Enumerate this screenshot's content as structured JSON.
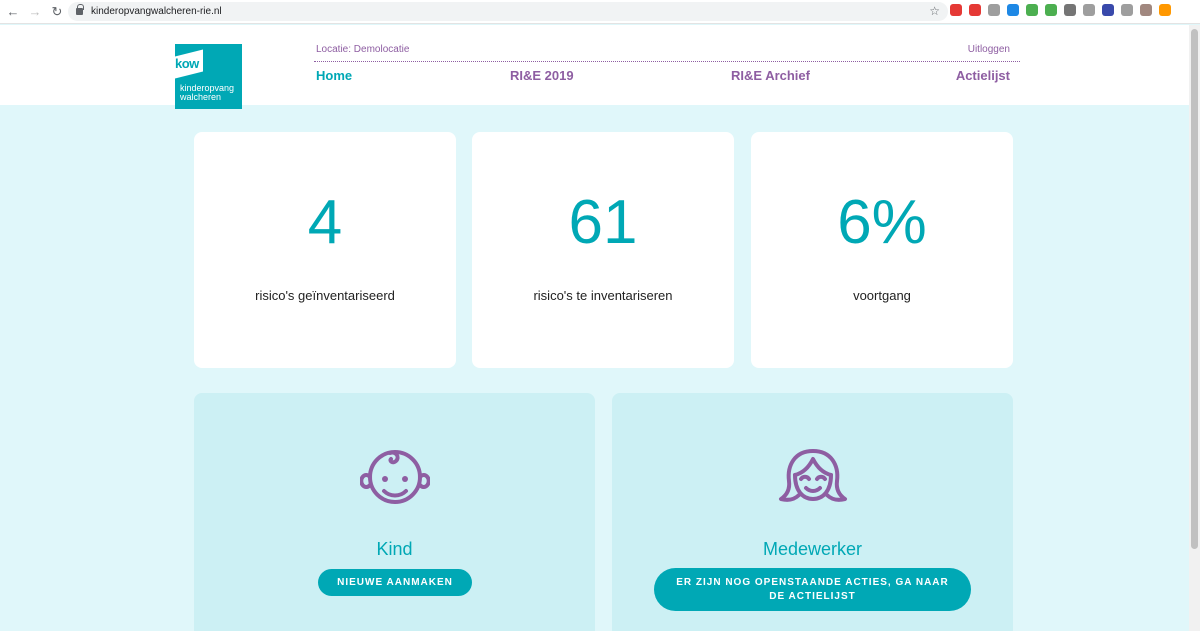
{
  "browser": {
    "url": "kinderopvangwalcheren-rie.nl",
    "extension_icons": [
      "#e53935",
      "#e53935",
      "#9e9e9e",
      "#1e88e5",
      "#4caf50",
      "#4caf50",
      "#757575",
      "#9e9e9e",
      "#3949ab",
      "#9e9e9e",
      "#a1887f",
      "#ff9800"
    ]
  },
  "header": {
    "logo": {
      "mark": "kow",
      "line1": "kinderopvang",
      "line2": "walcheren"
    },
    "location": "Locatie: Demolocatie",
    "logout": "Uitloggen",
    "menu": {
      "home": "Home",
      "rie": "RI&E 2019",
      "archief": "RI&E Archief",
      "actielijst": "Actielijst"
    }
  },
  "stats": {
    "inventoried": {
      "value": "4",
      "label": "risico's geïnventariseerd"
    },
    "to_inventory": {
      "value": "61",
      "label": "risico's te inventariseren"
    },
    "progress": {
      "value": "6%",
      "label": "voortgang"
    }
  },
  "panels": {
    "kind": {
      "title": "Kind",
      "button": "NIEUWE AANMAKEN",
      "icon": "baby-face-icon"
    },
    "medewerker": {
      "title": "Medewerker",
      "button_line1": "ER ZIJN NOG OPENSTAANDE ACTIES, GA NAAR",
      "button_line2": "DE ACTIELIJST",
      "icon": "woman-face-icon"
    }
  },
  "colors": {
    "teal": "#00a8b5",
    "purple": "#8e5ea2",
    "background": "#e0f7fa",
    "panel": "#ccf0f4"
  }
}
